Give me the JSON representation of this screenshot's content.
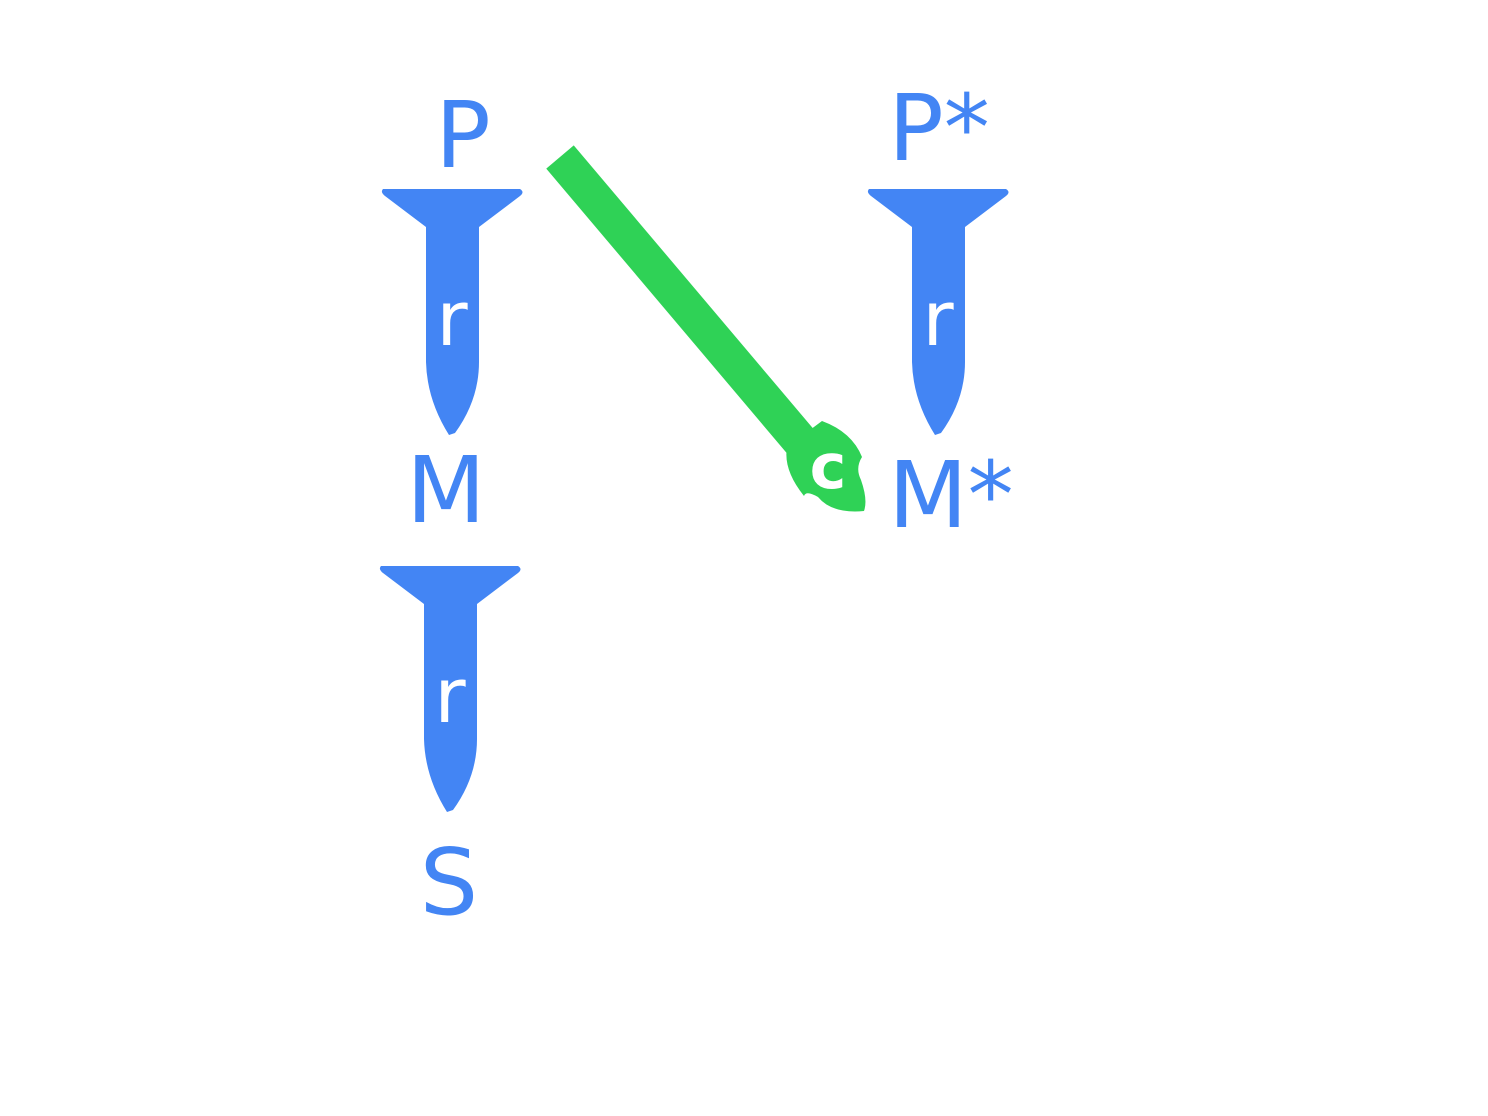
{
  "colors": {
    "node": "#4385f4",
    "arrow": "#4385f4",
    "arrow_label": "#ffffff",
    "cross_arrow": "#2fd256",
    "cross_label": "#ffffff",
    "background": "#ffffff"
  },
  "nodes": {
    "p": "P",
    "p_star": "P*",
    "m": "M",
    "m_star": "M*",
    "s": "S"
  },
  "arrows": {
    "p_to_m": "r",
    "m_to_s": "r",
    "pstar_to_mstar": "r",
    "cross": "c"
  }
}
